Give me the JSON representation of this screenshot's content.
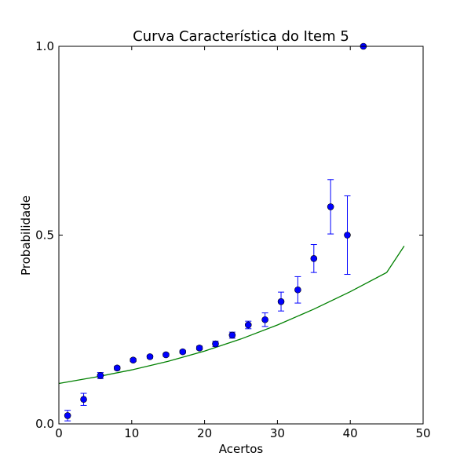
{
  "chart_data": {
    "type": "scatter",
    "title": "Curva Característica do Item 5",
    "xlabel": "Acertos",
    "ylabel": "Probabilidade",
    "xlim": [
      0,
      50
    ],
    "ylim": [
      0,
      1.0
    ],
    "x_ticks": [
      0,
      10,
      20,
      30,
      40,
      50
    ],
    "x_tick_labels": [
      "0",
      "10",
      "20",
      "30",
      "40",
      "50"
    ],
    "y_ticks": [
      0,
      0.5,
      1.0
    ],
    "y_tick_labels": [
      "0.0",
      "0.5",
      "1.0"
    ],
    "grid": false,
    "colors": {
      "points": "#0000ff",
      "curve": "#008000"
    },
    "points": [
      {
        "x": 1.2,
        "y": 0.022,
        "err": 0.014
      },
      {
        "x": 3.4,
        "y": 0.065,
        "err": 0.016
      },
      {
        "x": 5.7,
        "y": 0.128,
        "err": 0.008
      },
      {
        "x": 8.0,
        "y": 0.148,
        "err": 0.005
      },
      {
        "x": 10.2,
        "y": 0.169,
        "err": 0.004
      },
      {
        "x": 12.5,
        "y": 0.178,
        "err": 0.004
      },
      {
        "x": 14.7,
        "y": 0.183,
        "err": 0.004
      },
      {
        "x": 17.0,
        "y": 0.191,
        "err": 0.004
      },
      {
        "x": 19.3,
        "y": 0.201,
        "err": 0.005
      },
      {
        "x": 21.5,
        "y": 0.212,
        "err": 0.007
      },
      {
        "x": 23.8,
        "y": 0.235,
        "err": 0.008
      },
      {
        "x": 26.0,
        "y": 0.262,
        "err": 0.01
      },
      {
        "x": 28.3,
        "y": 0.276,
        "err": 0.018
      },
      {
        "x": 30.5,
        "y": 0.324,
        "err": 0.025
      },
      {
        "x": 32.8,
        "y": 0.355,
        "err": 0.035
      },
      {
        "x": 35.0,
        "y": 0.438,
        "err": 0.037
      },
      {
        "x": 37.3,
        "y": 0.575,
        "err": 0.072
      },
      {
        "x": 39.6,
        "y": 0.5,
        "err": 0.104
      },
      {
        "x": 41.8,
        "y": 1.0,
        "err": 0.0
      }
    ],
    "curve": [
      [
        0,
        0.107
      ],
      [
        5,
        0.124
      ],
      [
        10,
        0.143
      ],
      [
        15,
        0.166
      ],
      [
        20,
        0.193
      ],
      [
        25,
        0.225
      ],
      [
        30,
        0.262
      ],
      [
        35,
        0.304
      ],
      [
        40,
        0.35
      ],
      [
        45,
        0.401
      ],
      [
        47.4,
        0.471
      ]
    ]
  }
}
